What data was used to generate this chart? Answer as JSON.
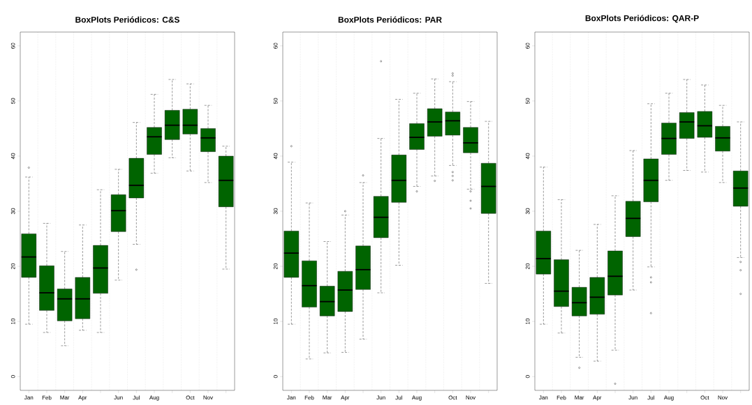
{
  "chart_data": [
    {
      "type": "box",
      "title": "BoxPlots Periódicos: C&S",
      "categories": [
        "Jan",
        "Feb",
        "Mar",
        "Apr",
        null,
        "Jun",
        "Jul",
        "Aug",
        null,
        "Oct",
        "Nov",
        null
      ],
      "color": "#006400",
      "ylim": [
        -2.5,
        62.5
      ],
      "yticks": [
        0,
        10,
        20,
        30,
        40,
        50,
        60
      ],
      "grid": "x",
      "boxes": [
        {
          "low": 9.5,
          "q1": 18.0,
          "median": 21.7,
          "q3": 25.9,
          "high": 36.2,
          "outliers": [
            37.9
          ]
        },
        {
          "low": 8.0,
          "q1": 12.0,
          "median": 15.2,
          "q3": 20.1,
          "high": 27.8
        },
        {
          "low": 5.6,
          "q1": 10.1,
          "median": 14.1,
          "q3": 15.9,
          "high": 22.7
        },
        {
          "low": 8.4,
          "q1": 10.5,
          "median": 14.1,
          "q3": 18.0,
          "high": 27.5
        },
        {
          "low": 8.0,
          "q1": 15.1,
          "median": 19.7,
          "q3": 23.8,
          "high": 33.9
        },
        {
          "low": 17.5,
          "q1": 26.3,
          "median": 30.1,
          "q3": 33.0,
          "high": 37.6
        },
        {
          "low": 24.0,
          "q1": 32.4,
          "median": 34.7,
          "q3": 39.6,
          "high": 46.1,
          "outliers": [
            19.4
          ]
        },
        {
          "low": 36.9,
          "q1": 40.3,
          "median": 43.5,
          "q3": 45.2,
          "high": 51.2
        },
        {
          "low": 39.7,
          "q1": 43.0,
          "median": 45.6,
          "q3": 48.3,
          "high": 53.9
        },
        {
          "low": 37.3,
          "q1": 44.0,
          "median": 45.6,
          "q3": 48.5,
          "high": 53.1
        },
        {
          "low": 35.2,
          "q1": 40.8,
          "median": 43.3,
          "q3": 45.0,
          "high": 49.2
        },
        {
          "low": 19.5,
          "q1": 30.8,
          "median": 35.6,
          "q3": 40.0,
          "high": 41.8
        }
      ]
    },
    {
      "type": "box",
      "title": "BoxPlots Periódicos: PAR",
      "categories": [
        "Jan",
        "Feb",
        "Mar",
        "Apr",
        null,
        "Jun",
        "Jul",
        "Aug",
        null,
        "Oct",
        "Nov",
        null
      ],
      "color": "#006400",
      "ylim": [
        -2.5,
        62.5
      ],
      "yticks": [
        0,
        10,
        20,
        30,
        40,
        50,
        60
      ],
      "grid": "x",
      "boxes": [
        {
          "low": 9.5,
          "q1": 18.0,
          "median": 22.4,
          "q3": 26.4,
          "high": 38.9,
          "outliers": [
            41.8
          ]
        },
        {
          "low": 3.2,
          "q1": 12.6,
          "median": 16.5,
          "q3": 21.0,
          "high": 31.5
        },
        {
          "low": 4.3,
          "q1": 11.0,
          "median": 13.6,
          "q3": 16.4,
          "high": 24.5
        },
        {
          "low": 4.4,
          "q1": 11.8,
          "median": 15.7,
          "q3": 19.1,
          "high": 29.3,
          "outliers": [
            30.0
          ]
        },
        {
          "low": 6.8,
          "q1": 15.8,
          "median": 19.4,
          "q3": 23.7,
          "high": 35.2,
          "outliers": [
            36.5
          ]
        },
        {
          "low": 15.2,
          "q1": 25.2,
          "median": 28.9,
          "q3": 32.7,
          "high": 43.2,
          "outliers": [
            57.2
          ]
        },
        {
          "low": 20.2,
          "q1": 31.6,
          "median": 35.6,
          "q3": 40.2,
          "high": 50.3
        },
        {
          "low": 34.5,
          "q1": 41.2,
          "median": 43.4,
          "q3": 45.9,
          "high": 51.4,
          "outliers": [
            33.6
          ]
        },
        {
          "low": 36.4,
          "q1": 43.6,
          "median": 46.2,
          "q3": 48.6,
          "high": 54.0,
          "outliers": [
            35.5
          ]
        },
        {
          "low": 38.3,
          "q1": 43.8,
          "median": 46.4,
          "q3": 48.0,
          "high": 53.5,
          "outliers": [
            55.0,
            54.6,
            37.1,
            36.4,
            35.6
          ]
        },
        {
          "low": 34.0,
          "q1": 40.6,
          "median": 42.4,
          "q3": 45.2,
          "high": 49.9,
          "outliers": [
            33.6,
            31.9,
            30.5
          ]
        },
        {
          "low": 16.9,
          "q1": 29.6,
          "median": 34.5,
          "q3": 38.7,
          "high": 46.3
        }
      ]
    },
    {
      "type": "box",
      "title": "BoxPlots Periódicos: QAR-P",
      "categories": [
        "Jan",
        "Feb",
        "Mar",
        "Apr",
        null,
        "Jun",
        "Jul",
        "Aug",
        null,
        "Oct",
        "Nov",
        null
      ],
      "color": "#006400",
      "ylim": [
        -2.5,
        62.5
      ],
      "yticks": [
        0,
        10,
        20,
        30,
        40,
        50,
        60
      ],
      "grid": "x",
      "boxes": [
        {
          "low": 9.5,
          "q1": 18.6,
          "median": 21.4,
          "q3": 26.4,
          "high": 38.0
        },
        {
          "low": 7.9,
          "q1": 12.7,
          "median": 15.5,
          "q3": 21.2,
          "high": 32.1
        },
        {
          "low": 3.5,
          "q1": 11.0,
          "median": 13.4,
          "q3": 16.2,
          "high": 22.9,
          "outliers": [
            1.6
          ]
        },
        {
          "low": 2.8,
          "q1": 11.3,
          "median": 14.4,
          "q3": 18.0,
          "high": 27.6
        },
        {
          "low": 4.8,
          "q1": 14.8,
          "median": 18.2,
          "q3": 22.8,
          "high": 32.8,
          "outliers": [
            -1.3
          ]
        },
        {
          "low": 15.7,
          "q1": 25.4,
          "median": 28.7,
          "q3": 31.8,
          "high": 41.0
        },
        {
          "low": 19.9,
          "q1": 31.7,
          "median": 35.6,
          "q3": 39.5,
          "high": 49.5,
          "outliers": [
            18.0,
            17.1,
            11.5
          ]
        },
        {
          "low": 35.6,
          "q1": 40.3,
          "median": 43.2,
          "q3": 46.0,
          "high": 51.4
        },
        {
          "low": 37.4,
          "q1": 43.2,
          "median": 46.2,
          "q3": 47.9,
          "high": 53.9
        },
        {
          "low": 37.1,
          "q1": 43.4,
          "median": 45.5,
          "q3": 48.1,
          "high": 52.9
        },
        {
          "low": 35.2,
          "q1": 40.9,
          "median": 43.3,
          "q3": 45.4,
          "high": 49.2
        },
        {
          "low": 21.6,
          "q1": 30.9,
          "median": 34.2,
          "q3": 37.3,
          "high": 46.2,
          "outliers": [
            20.8,
            19.3,
            15.0
          ]
        }
      ]
    }
  ]
}
